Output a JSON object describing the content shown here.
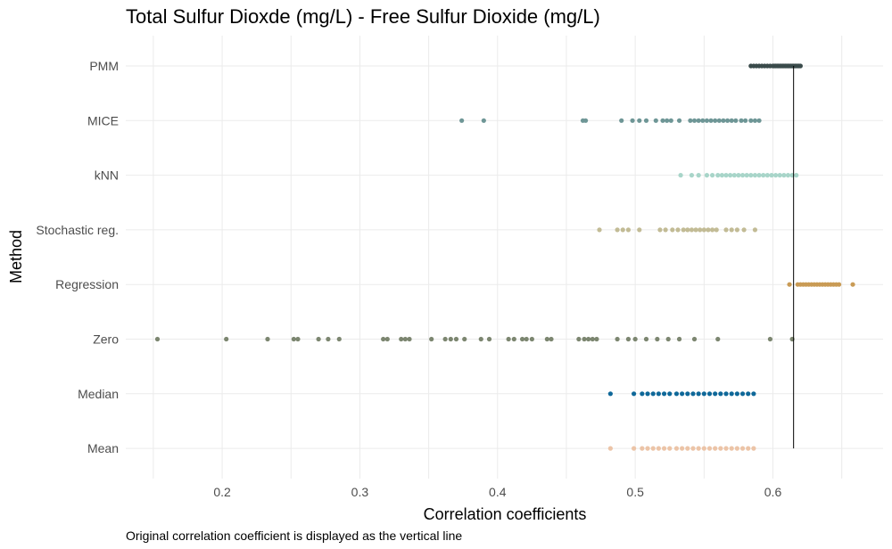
{
  "chart_data": {
    "type": "scatter",
    "title": "Total Sulfur Dioxde (mg/L) - Free Sulfur Dioxide (mg/L)",
    "xlabel": "Correlation coefficients",
    "ylabel": "Method",
    "caption": "Original correlation coefficient is displayed as the vertical line",
    "xlim": [
      0.13,
      0.68
    ],
    "xticks": [
      0.2,
      0.3,
      0.4,
      0.5,
      0.6
    ],
    "xtick_labels": [
      "0.2",
      "0.3",
      "0.4",
      "0.5",
      "0.6"
    ],
    "categories": [
      "PMM",
      "MICE",
      "kNN",
      "Stochastic reg.",
      "Regression",
      "Zero",
      "Median",
      "Mean"
    ],
    "reference_line": 0.615,
    "grid": true,
    "legend": "none",
    "series": [
      {
        "category": "PMM",
        "color": "#3a4b4b",
        "values": [
          0.584,
          0.586,
          0.588,
          0.59,
          0.592,
          0.594,
          0.596,
          0.598,
          0.6,
          0.601,
          0.602,
          0.603,
          0.604,
          0.605,
          0.606,
          0.607,
          0.608,
          0.609,
          0.61,
          0.611,
          0.612,
          0.613,
          0.614,
          0.615,
          0.616,
          0.617,
          0.618,
          0.619,
          0.62
        ]
      },
      {
        "category": "MICE",
        "color": "#6e9696",
        "values": [
          0.374,
          0.39,
          0.462,
          0.464,
          0.49,
          0.498,
          0.503,
          0.508,
          0.515,
          0.52,
          0.523,
          0.526,
          0.532,
          0.54,
          0.543,
          0.546,
          0.549,
          0.552,
          0.555,
          0.558,
          0.561,
          0.564,
          0.567,
          0.57,
          0.573,
          0.577,
          0.58,
          0.584,
          0.587,
          0.59
        ]
      },
      {
        "category": "kNN",
        "color": "#a8d5c9",
        "values": [
          0.533,
          0.541,
          0.546,
          0.552,
          0.556,
          0.56,
          0.563,
          0.566,
          0.569,
          0.572,
          0.575,
          0.578,
          0.581,
          0.584,
          0.587,
          0.59,
          0.593,
          0.596,
          0.599,
          0.602,
          0.605,
          0.608,
          0.611,
          0.614,
          0.617
        ]
      },
      {
        "category": "Stochastic reg.",
        "color": "#c2bb95",
        "values": [
          0.474,
          0.487,
          0.491,
          0.495,
          0.503,
          0.518,
          0.522,
          0.527,
          0.531,
          0.535,
          0.538,
          0.541,
          0.544,
          0.547,
          0.55,
          0.553,
          0.556,
          0.559,
          0.566,
          0.57,
          0.574,
          0.579,
          0.587
        ]
      },
      {
        "category": "Regression",
        "color": "#c99b55",
        "values": [
          0.612,
          0.618,
          0.62,
          0.622,
          0.624,
          0.626,
          0.628,
          0.63,
          0.632,
          0.634,
          0.636,
          0.638,
          0.64,
          0.642,
          0.644,
          0.646,
          0.648,
          0.658
        ]
      },
      {
        "category": "Zero",
        "color": "#7c8670",
        "values": [
          0.153,
          0.203,
          0.233,
          0.252,
          0.255,
          0.27,
          0.277,
          0.285,
          0.317,
          0.32,
          0.33,
          0.333,
          0.336,
          0.352,
          0.362,
          0.366,
          0.37,
          0.376,
          0.388,
          0.394,
          0.408,
          0.412,
          0.418,
          0.421,
          0.425,
          0.436,
          0.439,
          0.459,
          0.463,
          0.466,
          0.469,
          0.472,
          0.487,
          0.495,
          0.5,
          0.508,
          0.516,
          0.524,
          0.532,
          0.543,
          0.56,
          0.598,
          0.614
        ]
      },
      {
        "category": "Median",
        "color": "#0f6899",
        "values": [
          0.482,
          0.499,
          0.505,
          0.509,
          0.513,
          0.517,
          0.521,
          0.525,
          0.53,
          0.534,
          0.538,
          0.542,
          0.546,
          0.55,
          0.554,
          0.558,
          0.562,
          0.566,
          0.57,
          0.574,
          0.578,
          0.582,
          0.586
        ]
      },
      {
        "category": "Mean",
        "color": "#ecc4a7",
        "values": [
          0.482,
          0.499,
          0.505,
          0.509,
          0.513,
          0.517,
          0.521,
          0.525,
          0.53,
          0.534,
          0.538,
          0.542,
          0.546,
          0.55,
          0.554,
          0.558,
          0.562,
          0.566,
          0.57,
          0.574,
          0.578,
          0.582,
          0.586
        ]
      }
    ]
  }
}
